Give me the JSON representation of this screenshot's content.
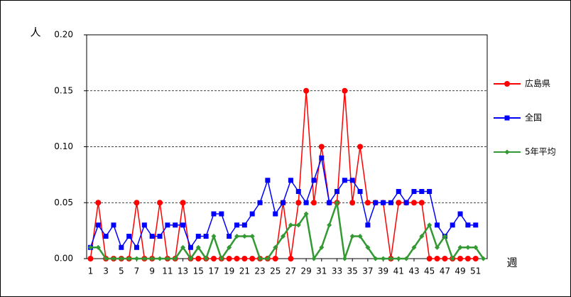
{
  "chart_data": {
    "type": "line",
    "y_label": "人",
    "x_label": "週",
    "x": [
      1,
      2,
      3,
      4,
      5,
      6,
      7,
      8,
      9,
      10,
      11,
      12,
      13,
      14,
      15,
      16,
      17,
      18,
      19,
      20,
      21,
      22,
      23,
      24,
      25,
      26,
      27,
      28,
      29,
      30,
      31,
      32,
      33,
      34,
      35,
      36,
      37,
      38,
      39,
      40,
      41,
      42,
      43,
      44,
      45,
      46,
      47,
      48,
      49,
      50,
      51,
      52
    ],
    "xlim": [
      0.5,
      52.5
    ],
    "xticks": [
      1,
      3,
      5,
      7,
      9,
      11,
      13,
      15,
      17,
      19,
      21,
      23,
      25,
      27,
      29,
      31,
      33,
      35,
      37,
      39,
      41,
      43,
      45,
      47,
      49,
      51
    ],
    "ylim": [
      0,
      0.2
    ],
    "yticks": [
      {
        "value": 0,
        "label": "0.00"
      },
      {
        "value": 0.05,
        "label": "0.05"
      },
      {
        "value": 0.1,
        "label": "0.10"
      },
      {
        "value": 0.15,
        "label": "0.15"
      },
      {
        "value": 0.2,
        "label": "0.20"
      }
    ],
    "grid": true,
    "legend": "right",
    "series": [
      {
        "name": "広島県",
        "color": "#ff0000",
        "marker": "circle",
        "values": [
          0,
          0.05,
          0,
          0,
          0,
          0,
          0.05,
          0,
          0,
          0.05,
          0,
          0,
          0.05,
          0,
          0,
          0,
          0,
          0,
          0,
          0,
          0,
          0,
          0,
          0,
          0,
          0.05,
          0,
          0.05,
          0.15,
          0.05,
          0.1,
          0.05,
          0.05,
          0.15,
          0.05,
          0.1,
          0.05,
          0.05,
          0.05,
          0,
          0.05,
          0.05,
          0.05,
          0.05,
          0,
          0,
          0,
          0,
          0,
          0,
          0,
          null
        ]
      },
      {
        "name": "全国",
        "color": "#0000ff",
        "marker": "square",
        "values": [
          0.01,
          0.03,
          0.02,
          0.03,
          0.01,
          0.02,
          0.01,
          0.03,
          0.02,
          0.02,
          0.03,
          0.03,
          0.03,
          0.01,
          0.02,
          0.02,
          0.04,
          0.04,
          0.02,
          0.03,
          0.03,
          0.04,
          0.05,
          0.07,
          0.04,
          0.05,
          0.07,
          0.06,
          0.05,
          0.07,
          0.09,
          0.05,
          0.06,
          0.07,
          0.07,
          0.06,
          0.03,
          0.05,
          0.05,
          0.05,
          0.06,
          0.05,
          0.06,
          0.06,
          0.06,
          0.03,
          0.02,
          0.03,
          0.04,
          0.03,
          0.03,
          null
        ]
      },
      {
        "name": "5年平均",
        "color": "#339933",
        "marker": "diamond",
        "values": [
          0.01,
          0.01,
          0,
          0,
          0,
          0,
          0,
          0,
          0,
          0,
          0,
          0,
          0.01,
          0,
          0.01,
          0,
          0.02,
          0,
          0.01,
          0.02,
          0.02,
          0.02,
          0,
          0,
          0.01,
          0.02,
          0.03,
          0.03,
          0.04,
          0,
          0.01,
          0.03,
          0.05,
          0,
          0.02,
          0.02,
          0.01,
          0,
          0,
          0,
          0,
          0,
          0.01,
          0.02,
          0.03,
          0.01,
          0.02,
          0,
          0.01,
          0.01,
          0.01,
          0
        ]
      }
    ]
  }
}
